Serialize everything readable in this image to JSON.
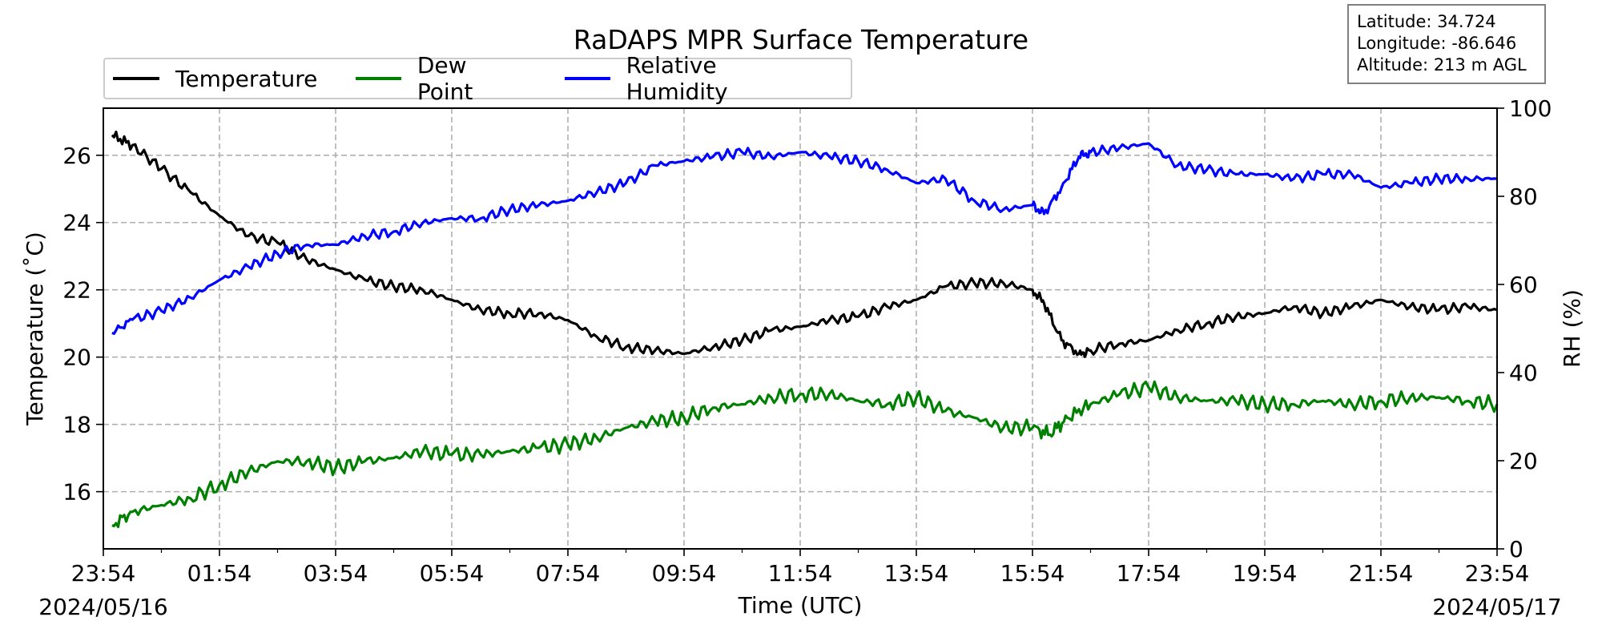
{
  "chart_data": {
    "type": "line",
    "title": "RaDAPS MPR Surface Temperature",
    "xlabel": "Time (UTC)",
    "ylabel_left": "Temperature ($^\\circ$C)",
    "ylabel_left_display": "Temperature (˚C)",
    "ylabel_right": "RH (%)",
    "x_ticks": [
      "23:54",
      "01:54",
      "03:54",
      "05:54",
      "07:54",
      "09:54",
      "11:54",
      "13:54",
      "15:54",
      "17:54",
      "19:54",
      "21:54",
      "23:54"
    ],
    "x_range_hours": [
      0,
      24
    ],
    "start_date_label": "2024/05/16",
    "end_date_label": "2024/05/17",
    "ylim_left": [
      14.3,
      27.4
    ],
    "yticks_left": [
      16,
      18,
      20,
      22,
      24,
      26
    ],
    "ylim_right": [
      0,
      100
    ],
    "yticks_right": [
      0,
      20,
      40,
      60,
      80,
      100
    ],
    "grid": true,
    "legend_position": "top-left",
    "series": [
      {
        "name": "Temperature",
        "color": "#000000",
        "axis": "left",
        "points": [
          [
            0.15,
            26.6
          ],
          [
            0.5,
            26.3
          ],
          [
            1.0,
            25.6
          ],
          [
            1.5,
            24.9
          ],
          [
            2.0,
            24.2
          ],
          [
            2.5,
            23.6
          ],
          [
            3.0,
            23.4
          ],
          [
            3.5,
            22.9
          ],
          [
            4.0,
            22.6
          ],
          [
            4.5,
            22.3
          ],
          [
            5.0,
            22.1
          ],
          [
            5.5,
            22.0
          ],
          [
            6.0,
            21.7
          ],
          [
            6.5,
            21.4
          ],
          [
            7.0,
            21.3
          ],
          [
            7.5,
            21.3
          ],
          [
            8.0,
            21.1
          ],
          [
            8.5,
            20.6
          ],
          [
            9.0,
            20.3
          ],
          [
            9.5,
            20.2
          ],
          [
            10.0,
            20.1
          ],
          [
            10.5,
            20.3
          ],
          [
            11.0,
            20.5
          ],
          [
            11.5,
            20.8
          ],
          [
            12.0,
            20.9
          ],
          [
            12.5,
            21.1
          ],
          [
            13.0,
            21.2
          ],
          [
            13.5,
            21.5
          ],
          [
            14.0,
            21.7
          ],
          [
            14.5,
            22.1
          ],
          [
            15.0,
            22.2
          ],
          [
            15.5,
            22.2
          ],
          [
            16.0,
            22.0
          ],
          [
            16.2,
            21.6
          ],
          [
            16.5,
            20.5
          ],
          [
            16.8,
            20.1
          ],
          [
            17.0,
            20.2
          ],
          [
            17.5,
            20.4
          ],
          [
            18.0,
            20.5
          ],
          [
            18.5,
            20.8
          ],
          [
            19.0,
            21.0
          ],
          [
            19.5,
            21.2
          ],
          [
            20.0,
            21.3
          ],
          [
            20.5,
            21.5
          ],
          [
            21.0,
            21.3
          ],
          [
            21.5,
            21.5
          ],
          [
            22.0,
            21.7
          ],
          [
            22.5,
            21.5
          ],
          [
            23.0,
            21.4
          ],
          [
            23.5,
            21.5
          ],
          [
            24.0,
            21.4
          ]
        ]
      },
      {
        "name": "Dew Point",
        "color": "#008000",
        "axis": "left",
        "points": [
          [
            0.15,
            15.0
          ],
          [
            0.5,
            15.4
          ],
          [
            1.0,
            15.6
          ],
          [
            1.5,
            15.8
          ],
          [
            2.0,
            16.2
          ],
          [
            2.5,
            16.6
          ],
          [
            3.0,
            16.9
          ],
          [
            3.5,
            16.9
          ],
          [
            4.0,
            16.7
          ],
          [
            4.5,
            16.9
          ],
          [
            5.0,
            17.0
          ],
          [
            5.5,
            17.2
          ],
          [
            6.0,
            17.1
          ],
          [
            6.5,
            17.1
          ],
          [
            7.0,
            17.2
          ],
          [
            7.5,
            17.3
          ],
          [
            8.0,
            17.4
          ],
          [
            8.5,
            17.6
          ],
          [
            9.0,
            17.9
          ],
          [
            9.5,
            18.1
          ],
          [
            10.0,
            18.2
          ],
          [
            10.5,
            18.5
          ],
          [
            11.0,
            18.6
          ],
          [
            11.5,
            18.8
          ],
          [
            12.0,
            18.9
          ],
          [
            12.5,
            18.9
          ],
          [
            13.0,
            18.7
          ],
          [
            13.5,
            18.6
          ],
          [
            14.0,
            18.8
          ],
          [
            14.5,
            18.4
          ],
          [
            15.0,
            18.2
          ],
          [
            15.5,
            17.9
          ],
          [
            16.0,
            17.9
          ],
          [
            16.3,
            17.7
          ],
          [
            16.6,
            18.2
          ],
          [
            17.0,
            18.6
          ],
          [
            17.5,
            18.9
          ],
          [
            18.0,
            19.1
          ],
          [
            18.5,
            18.8
          ],
          [
            19.0,
            18.7
          ],
          [
            19.5,
            18.7
          ],
          [
            20.0,
            18.6
          ],
          [
            20.5,
            18.6
          ],
          [
            21.0,
            18.7
          ],
          [
            21.5,
            18.6
          ],
          [
            22.0,
            18.7
          ],
          [
            22.5,
            18.8
          ],
          [
            23.0,
            18.8
          ],
          [
            23.5,
            18.7
          ],
          [
            24.0,
            18.6
          ]
        ]
      },
      {
        "name": "Relative Humidity",
        "color": "#0000ff",
        "axis": "right",
        "points": [
          [
            0.15,
            49
          ],
          [
            0.5,
            52
          ],
          [
            1.0,
            54
          ],
          [
            1.5,
            57
          ],
          [
            2.0,
            61
          ],
          [
            2.5,
            64
          ],
          [
            3.0,
            67
          ],
          [
            3.5,
            69
          ],
          [
            4.0,
            69
          ],
          [
            4.5,
            71
          ],
          [
            5.0,
            72
          ],
          [
            5.5,
            74
          ],
          [
            6.0,
            75
          ],
          [
            6.5,
            75
          ],
          [
            7.0,
            77
          ],
          [
            7.5,
            78
          ],
          [
            8.0,
            79
          ],
          [
            8.5,
            81
          ],
          [
            9.0,
            83
          ],
          [
            9.5,
            87
          ],
          [
            10.0,
            88
          ],
          [
            10.5,
            89
          ],
          [
            11.0,
            90
          ],
          [
            11.5,
            89
          ],
          [
            12.0,
            90
          ],
          [
            12.5,
            89
          ],
          [
            13.0,
            88
          ],
          [
            13.5,
            86
          ],
          [
            14.0,
            83
          ],
          [
            14.5,
            84
          ],
          [
            15.0,
            79
          ],
          [
            15.5,
            77
          ],
          [
            16.0,
            78
          ],
          [
            16.2,
            76
          ],
          [
            16.5,
            82
          ],
          [
            16.8,
            89
          ],
          [
            17.0,
            90
          ],
          [
            17.5,
            91
          ],
          [
            18.0,
            92
          ],
          [
            18.5,
            87
          ],
          [
            19.0,
            86
          ],
          [
            19.5,
            85
          ],
          [
            20.0,
            85
          ],
          [
            20.5,
            84
          ],
          [
            21.0,
            85
          ],
          [
            21.5,
            85
          ],
          [
            22.0,
            82
          ],
          [
            22.5,
            83
          ],
          [
            23.0,
            84
          ],
          [
            23.5,
            84
          ],
          [
            24.0,
            84
          ]
        ]
      }
    ]
  },
  "legend": {
    "items": [
      {
        "label": "Temperature",
        "color": "#000000"
      },
      {
        "label": "Dew Point",
        "color": "#008000"
      },
      {
        "label": "Relative Humidity",
        "color": "#0000ff"
      }
    ]
  },
  "info": {
    "latitude": "Latitude: 34.724",
    "longitude": "Longitude: -86.646",
    "altitude": "Altitude: 213 m AGL"
  }
}
